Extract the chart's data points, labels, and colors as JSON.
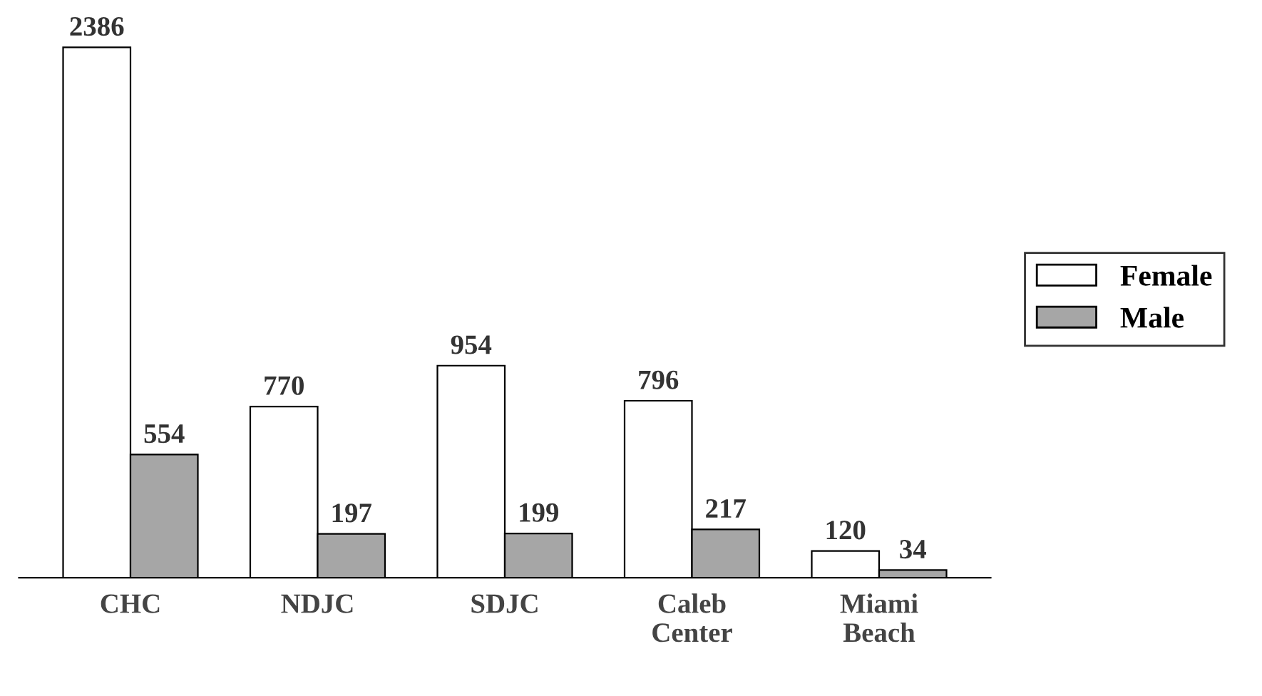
{
  "chart_data": {
    "type": "bar",
    "categories": [
      "CHC",
      "NDJC",
      "SDJC",
      "Caleb\nCenter",
      "Miami\nBeach"
    ],
    "series": [
      {
        "name": "Female",
        "color": "#ffffff",
        "values": [
          2386,
          770,
          954,
          796,
          120
        ]
      },
      {
        "name": "Male",
        "color": "#a6a6a6",
        "values": [
          554,
          197,
          199,
          217,
          34
        ]
      }
    ],
    "data_labels": true,
    "legend": "right",
    "grid": false
  }
}
